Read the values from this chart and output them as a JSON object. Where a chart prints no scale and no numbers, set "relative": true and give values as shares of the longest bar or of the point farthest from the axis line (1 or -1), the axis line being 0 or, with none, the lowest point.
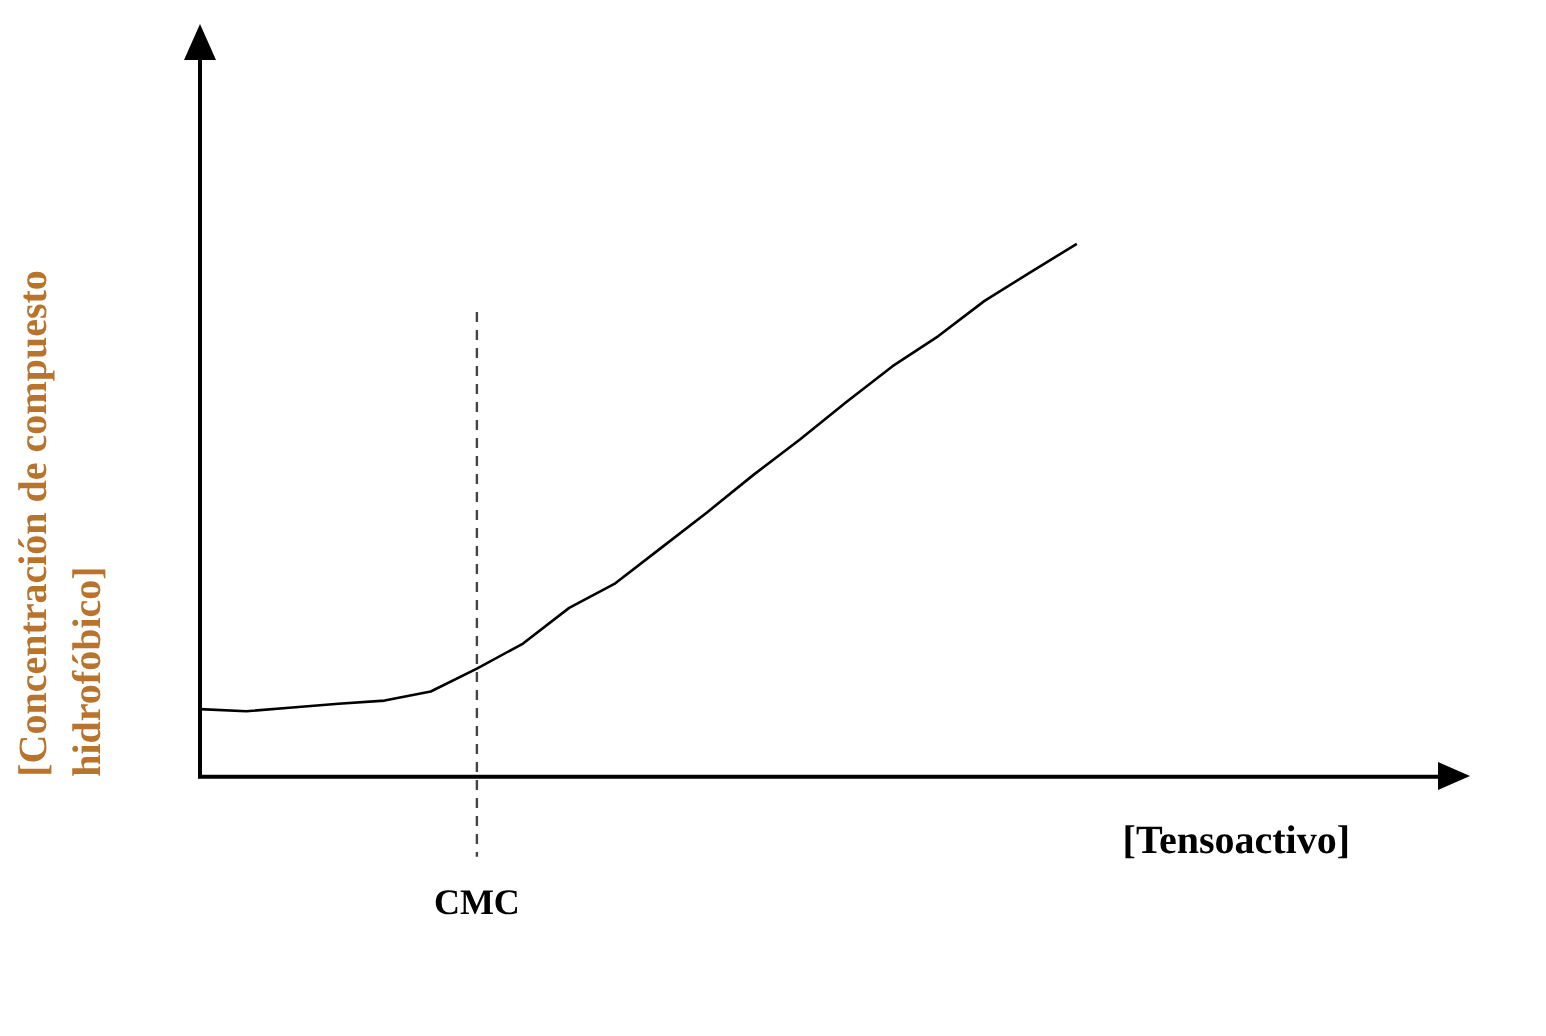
{
  "chart_data": {
    "type": "line",
    "relative": true,
    "xlabel": "[Tensoactivo]",
    "ylabel": "[Concentración de compuesto hidrofóbico]",
    "categories": [
      null,
      null,
      null,
      null,
      null,
      null,
      null,
      null,
      null,
      null,
      null,
      null,
      null,
      null,
      null,
      null,
      null,
      null,
      null,
      null,
      null,
      null,
      null,
      null,
      null,
      null,
      null,
      null
    ],
    "series": [
      {
        "color": "#000000",
        "values": [
          0.127,
          0.123,
          0.13,
          0.137,
          0.143,
          0.16,
          0.203,
          0.25,
          0.317,
          0.363,
          0.43,
          0.497,
          0.567,
          0.633,
          0.703,
          0.77,
          0.827,
          0.893,
          0.947,
          1.0,
          null,
          null,
          null,
          null,
          null,
          null,
          null,
          null
        ]
      }
    ],
    "annotations": [
      "CMC"
    ],
    "grid": false,
    "legend": false,
    "marker": "none",
    "line_style": "solid"
  }
}
